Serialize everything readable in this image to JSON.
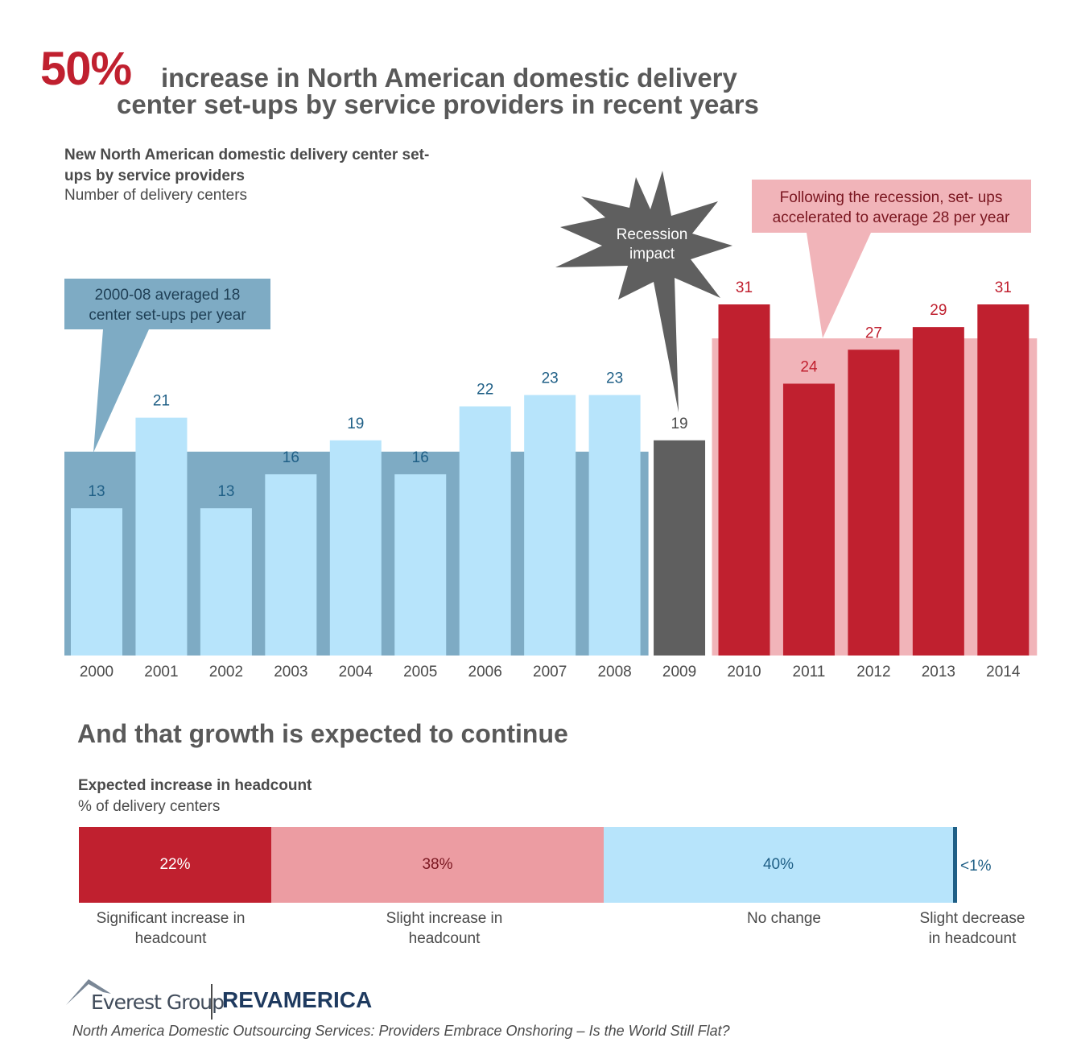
{
  "headline": {
    "percent": "50%",
    "line1": "increase in North American domestic delivery",
    "line2": "center set-ups by service providers in recent years"
  },
  "colors": {
    "red": "#c0202f",
    "pink": "#f1b4b9",
    "light_blue": "#b7e4fb",
    "steel_blue": "#7eabc4",
    "dark_gray": "#5f5f5f",
    "dark_blue_text": "#1f5f86",
    "gray_text": "#4a4a4a"
  },
  "chart_data": [
    {
      "type": "bar",
      "title": "New North American domestic delivery center set-ups by service providers",
      "subtitle": "Number of delivery centers",
      "categories": [
        "2000",
        "2001",
        "2002",
        "2003",
        "2004",
        "2005",
        "2006",
        "2007",
        "2008",
        "2009",
        "2010",
        "2011",
        "2012",
        "2013",
        "2014"
      ],
      "values": [
        13,
        21,
        13,
        16,
        19,
        16,
        22,
        23,
        23,
        19,
        31,
        24,
        27,
        29,
        31
      ],
      "value_labels": [
        "13",
        "21",
        "13",
        "16",
        "19",
        "16",
        "22",
        "23",
        "23",
        "19",
        "31",
        "24",
        "27",
        "29",
        "31"
      ],
      "period_averages": [
        {
          "from": "2000",
          "to": "2008",
          "average": 18
        },
        {
          "from": "2010",
          "to": "2014",
          "average": 28
        }
      ],
      "annotations": [
        {
          "text_lines": [
            "2000-08 averaged 18",
            "center set-ups per year"
          ]
        },
        {
          "text_lines": [
            "Recession",
            "impact"
          ]
        },
        {
          "text_lines": [
            "Following the recession, set- ups",
            "accelerated to average 28 per year"
          ]
        }
      ],
      "ylim": [
        0,
        35
      ]
    },
    {
      "type": "bar",
      "stacked": true,
      "title": "Expected increase in headcount",
      "subtitle": "% of delivery centers",
      "section_title": "And that growth is expected to continue",
      "segments": [
        {
          "label": "Significant increase in headcount",
          "value": 22,
          "value_label": "22%"
        },
        {
          "label": "Slight increase in headcount",
          "value": 38,
          "value_label": "38%"
        },
        {
          "label": "No change",
          "value": 40,
          "value_label": "40%"
        },
        {
          "label": "Slight decrease in headcount",
          "value": 0.5,
          "value_label": "<1%"
        }
      ]
    }
  ],
  "labels": {
    "seg1_line1": "Significant increase in",
    "seg1_line2": "headcount",
    "seg2_line1": "Slight increase in",
    "seg2_line2": "headcount",
    "seg3_line1": "No change",
    "seg4_line1": "Slight decrease",
    "seg4_line2": "in headcount"
  },
  "footer": {
    "logo1": "Everest Group",
    "logo2_part1": "REV",
    "logo2_part2": "AMERICA",
    "source": "North America Domestic Outsourcing Services: Providers Embrace Onshoring – Is the World Still Flat?"
  }
}
